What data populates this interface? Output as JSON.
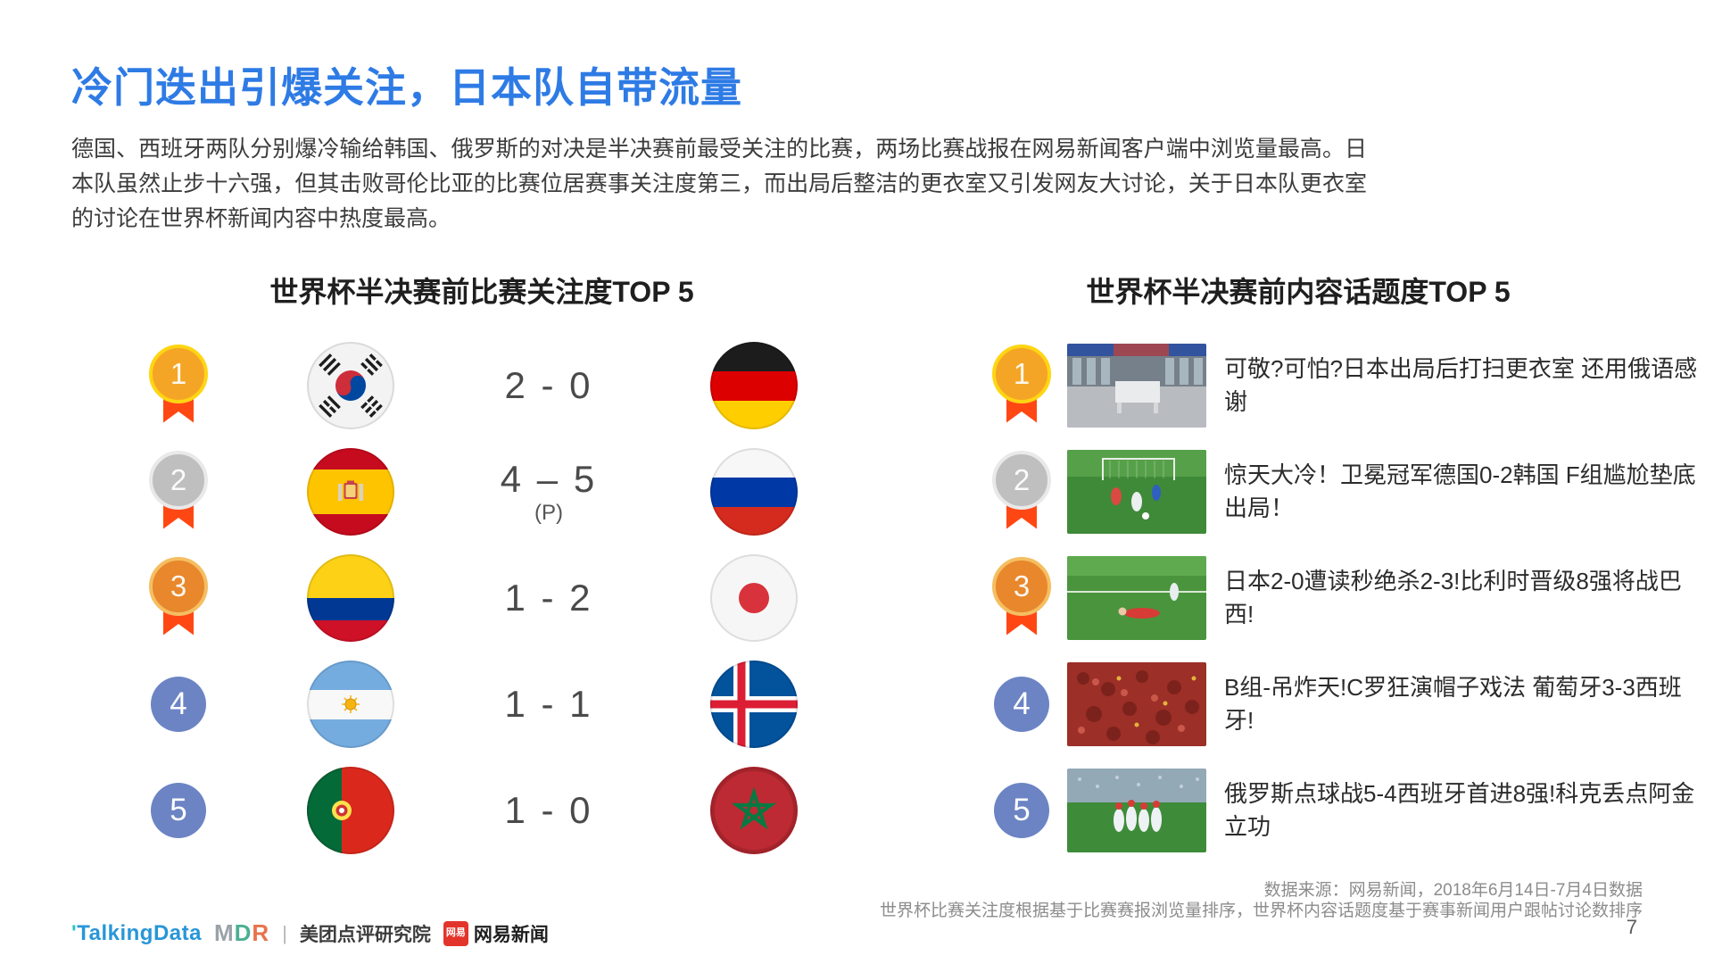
{
  "page": {
    "title": "冷门迭出引爆关注，日本队自带流量",
    "paragraph": "德国、西班牙两队分别爆冷输给韩国、俄罗斯的对决是半决赛前最受关注的比赛，两场比赛战报在网易新闻客户端中浏览量最高。日本队虽然止步十六强，但其击败哥伦比亚的比赛位居赛事关注度第三，而出局后整洁的更衣室又引发网友大讨论，关于日本队更衣室的讨论在世界杯新闻内容中热度最高。",
    "page_number": "7"
  },
  "left_panel": {
    "header": "世界杯半决赛前比赛关注度TOP 5",
    "rows": [
      {
        "rank": 1,
        "home_flag": "flag-south-korea-icon",
        "score": "2 - 0",
        "away_flag": "flag-germany-icon"
      },
      {
        "rank": 2,
        "home_flag": "flag-spain-icon",
        "score": "4 – 5",
        "score_note": "(P)",
        "away_flag": "flag-russia-icon"
      },
      {
        "rank": 3,
        "home_flag": "flag-colombia-icon",
        "score": "1 - 2",
        "away_flag": "flag-japan-icon"
      },
      {
        "rank": 4,
        "home_flag": "flag-argentina-icon",
        "score": "1 - 1",
        "away_flag": "flag-iceland-icon"
      },
      {
        "rank": 5,
        "home_flag": "flag-portugal-icon",
        "score": "1 - 0",
        "away_flag": "flag-morocco-icon"
      }
    ]
  },
  "right_panel": {
    "header": "世界杯半决赛前内容话题度TOP 5",
    "rows": [
      {
        "rank": 1,
        "thumbnail": "locker-room-photo",
        "title": "可敬?可怕?日本出局后打扫更衣室 还用俄语感谢"
      },
      {
        "rank": 2,
        "thumbnail": "goal-scene-photo",
        "title": "惊天大冷！卫冕冠军德国0-2韩国 F组尴尬垫底出局！"
      },
      {
        "rank": 3,
        "thumbnail": "player-down-photo",
        "title": "日本2-0遭读秒绝杀2-3!比利时晋级8强将战巴西!"
      },
      {
        "rank": 4,
        "thumbnail": "red-fans-photo",
        "title": "B组-吊炸天!C罗狂演帽子戏法 葡萄牙3-3西班牙!"
      },
      {
        "rank": 5,
        "thumbnail": "celebration-photo",
        "title": "俄罗斯点球战5-4西班牙首进8强!科克丢点阿金立功"
      }
    ]
  },
  "footer": {
    "source_line1": "数据来源：网易新闻，2018年6月14日-7月4日数据",
    "source_line2": "世界杯比赛关注度根据基于比赛赛报浏览量排序，世界杯内容话题度基于赛事新闻用户跟帖讨论数排序",
    "logos": {
      "talkingdata_tick": "'",
      "talkingdata": "TalkingData",
      "mdr_m": "M",
      "mdr_d": "D",
      "mdr_r": "R",
      "divider": "|",
      "meituan": "美团点评研究院",
      "netease_badge": "网易",
      "netease": "网易新闻"
    }
  },
  "colors": {
    "title": "#2E7BE5",
    "ribbon": "#FF4714",
    "rank_gold": "#F5A526",
    "rank_silver": "#BFBFBF",
    "rank_bronze": "#E8872B",
    "rank_default": "#6C84C4"
  }
}
